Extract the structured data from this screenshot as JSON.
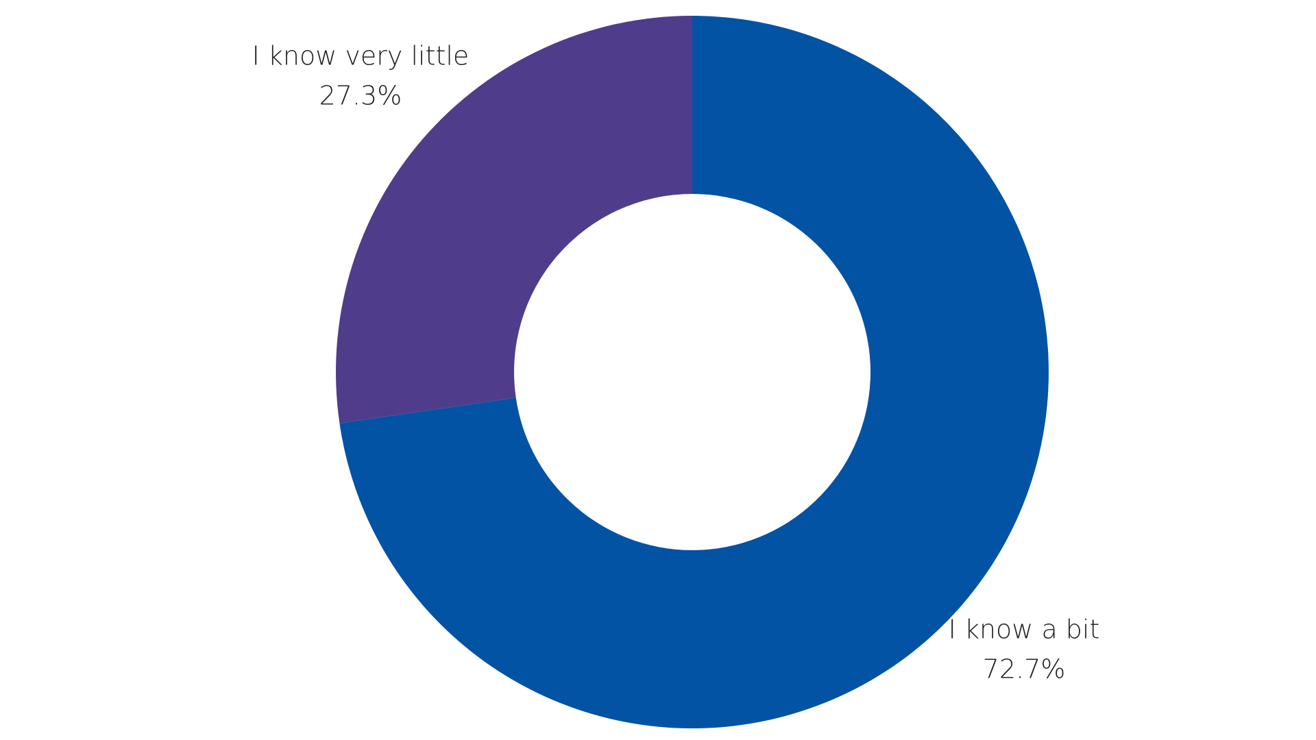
{
  "chart_data": {
    "type": "pie",
    "variant": "donut",
    "start_angle": "top, clockwise",
    "slices": [
      {
        "label": "I know a bit",
        "value": 72.7,
        "value_label": "72.7%",
        "color": "#0253A4"
      },
      {
        "label": "I know very little",
        "value": 27.3,
        "value_label": "27.3%",
        "color": "#4F3D8B"
      }
    ],
    "legend": "none (labels outside slices)"
  }
}
